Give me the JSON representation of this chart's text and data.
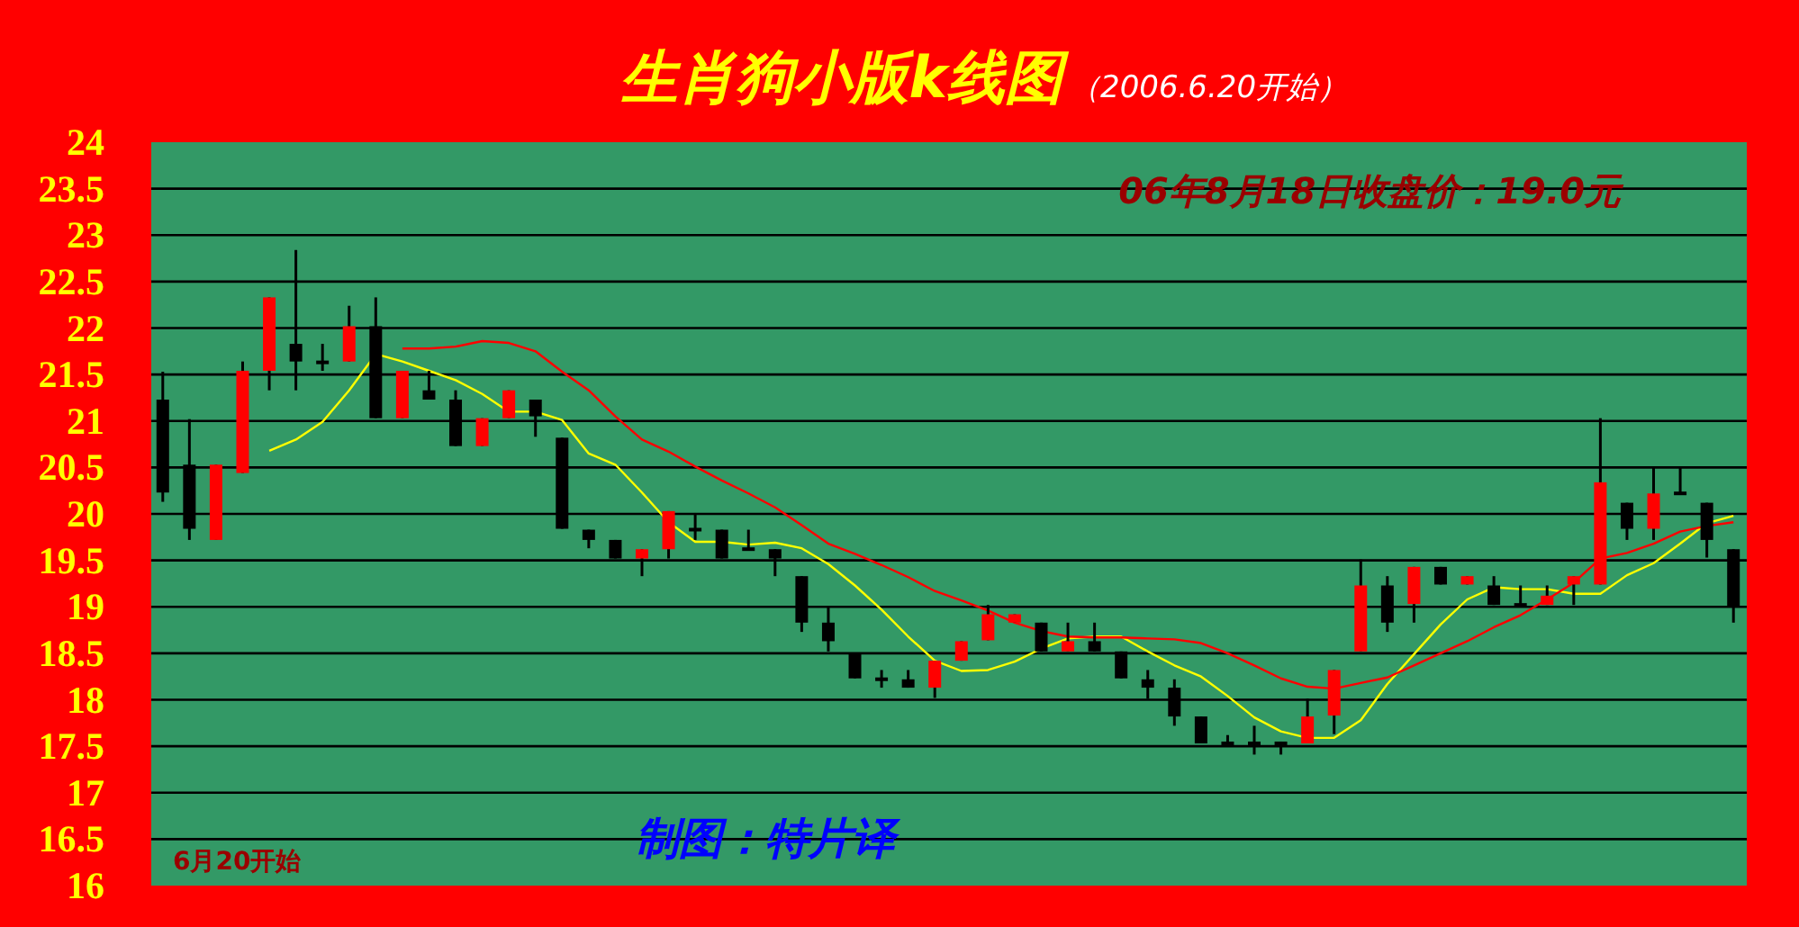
{
  "chart_data": {
    "type": "candlestick",
    "title": "生肖狗小版k线图",
    "subtitle": "（2006.6.20开始）",
    "annotations": [
      "06年8月18日收盘价：19.0元",
      "制图：特片译",
      "6月20开始"
    ],
    "categories": [
      null,
      null,
      null,
      null,
      null,
      null,
      null,
      null,
      null,
      null,
      null,
      null,
      null,
      null,
      null,
      null,
      null,
      null,
      null,
      null,
      null,
      null,
      null,
      null,
      null,
      null,
      null,
      null,
      null,
      null,
      null,
      null,
      null,
      null,
      null,
      null,
      null,
      null,
      null,
      null,
      null,
      null,
      null,
      null,
      null,
      null,
      null,
      null,
      null,
      null,
      null,
      null,
      null,
      null,
      null,
      null,
      null,
      null,
      null,
      null
    ],
    "ohlc": [
      [
        21.23,
        21.53,
        20.13,
        20.23
      ],
      [
        20.53,
        21.02,
        19.72,
        19.84
      ],
      [
        19.72,
        20.53,
        19.72,
        20.53
      ],
      [
        20.44,
        21.64,
        20.44,
        21.54
      ],
      [
        21.54,
        22.33,
        21.33,
        22.33
      ],
      [
        21.83,
        22.84,
        21.33,
        21.64
      ],
      [
        21.65,
        21.83,
        21.54,
        21.62
      ],
      [
        21.64,
        22.24,
        21.64,
        22.02
      ],
      [
        22.02,
        22.33,
        21.03,
        21.03
      ],
      [
        21.03,
        21.54,
        21.03,
        21.54
      ],
      [
        21.33,
        21.54,
        21.23,
        21.23
      ],
      [
        21.23,
        21.33,
        20.73,
        20.73
      ],
      [
        20.73,
        21.03,
        20.73,
        21.03
      ],
      [
        21.03,
        21.33,
        21.03,
        21.33
      ],
      [
        21.23,
        21.23,
        20.83,
        21.05
      ],
      [
        20.82,
        20.82,
        19.84,
        19.84
      ],
      [
        19.83,
        19.83,
        19.63,
        19.72
      ],
      [
        19.72,
        19.72,
        19.52,
        19.52
      ],
      [
        19.52,
        19.62,
        19.33,
        19.62
      ],
      [
        19.62,
        20.03,
        19.52,
        20.03
      ],
      [
        19.85,
        20.01,
        19.72,
        19.82
      ],
      [
        19.83,
        19.83,
        19.52,
        19.52
      ],
      [
        19.64,
        19.83,
        19.61,
        19.61
      ],
      [
        19.62,
        19.62,
        19.33,
        19.52
      ],
      [
        19.33,
        19.33,
        18.73,
        18.83
      ],
      [
        18.83,
        19.01,
        18.52,
        18.63
      ],
      [
        18.5,
        18.5,
        18.23,
        18.23
      ],
      [
        18.24,
        18.32,
        18.13,
        18.22
      ],
      [
        18.22,
        18.32,
        18.13,
        18.13
      ],
      [
        18.13,
        18.42,
        18.02,
        18.42
      ],
      [
        18.42,
        18.63,
        18.42,
        18.63
      ],
      [
        18.64,
        19.02,
        18.64,
        18.92
      ],
      [
        18.83,
        18.92,
        18.83,
        18.92
      ],
      [
        18.83,
        18.83,
        18.52,
        18.52
      ],
      [
        18.52,
        18.83,
        18.52,
        18.63
      ],
      [
        18.63,
        18.83,
        18.52,
        18.52
      ],
      [
        18.52,
        18.52,
        18.23,
        18.23
      ],
      [
        18.22,
        18.32,
        18.01,
        18.13
      ],
      [
        18.13,
        18.22,
        17.72,
        17.82
      ],
      [
        17.82,
        17.82,
        17.53,
        17.53
      ],
      [
        17.55,
        17.62,
        17.53,
        17.53
      ],
      [
        17.55,
        17.72,
        17.41,
        17.53
      ],
      [
        17.55,
        17.55,
        17.41,
        17.53
      ],
      [
        17.53,
        18.01,
        17.53,
        17.82
      ],
      [
        17.83,
        18.32,
        17.63,
        18.32
      ],
      [
        18.52,
        19.51,
        18.52,
        19.23
      ],
      [
        19.23,
        19.33,
        18.73,
        18.83
      ],
      [
        19.03,
        19.43,
        18.83,
        19.43
      ],
      [
        19.43,
        19.43,
        19.24,
        19.24
      ],
      [
        19.24,
        19.33,
        19.24,
        19.33
      ],
      [
        19.23,
        19.33,
        19.02,
        19.02
      ],
      [
        19.04,
        19.23,
        19.02,
        19.02
      ],
      [
        19.02,
        19.23,
        19.02,
        19.12
      ],
      [
        19.24,
        19.33,
        19.02,
        19.33
      ],
      [
        19.24,
        21.03,
        19.24,
        20.34
      ],
      [
        20.12,
        20.12,
        19.72,
        19.84
      ],
      [
        19.84,
        20.51,
        19.72,
        20.22
      ],
      [
        20.24,
        20.51,
        20.22,
        20.22
      ],
      [
        20.12,
        20.12,
        19.53,
        19.72
      ],
      [
        19.62,
        19.62,
        18.83,
        19.0
      ]
    ],
    "colors": [
      "#000000",
      "#000000",
      "#ff0000",
      "#ff0000",
      "#ff0000",
      "#000000",
      "#000000",
      "#ff0000",
      "#000000",
      "#ff0000",
      "#000000",
      "#000000",
      "#ff0000",
      "#ff0000",
      "#000000",
      "#000000",
      "#000000",
      "#000000",
      "#ff0000",
      "#ff0000",
      "#000000",
      "#000000",
      "#000000",
      "#000000",
      "#000000",
      "#000000",
      "#000000",
      "#000000",
      "#000000",
      "#ff0000",
      "#ff0000",
      "#ff0000",
      "#ff0000",
      "#000000",
      "#ff0000",
      "#000000",
      "#000000",
      "#000000",
      "#000000",
      "#000000",
      "#000000",
      "#000000",
      "#000000",
      "#ff0000",
      "#ff0000",
      "#ff0000",
      "#000000",
      "#ff0000",
      "#000000",
      "#ff0000",
      "#000000",
      "#000000",
      "#ff0000",
      "#ff0000",
      "#ff0000",
      "#000000",
      "#ff0000",
      "#000000",
      "#000000",
      "#000000"
    ],
    "series": [
      {
        "type": "line",
        "color": "#ffff00",
        "values": [
          null,
          null,
          null,
          null,
          20.68,
          20.8,
          20.99,
          21.33,
          21.72,
          21.64,
          21.54,
          21.44,
          21.29,
          21.1,
          21.1,
          21.01,
          20.65,
          20.53,
          20.23,
          19.91,
          19.7,
          19.7,
          19.67,
          19.69,
          19.63,
          19.46,
          19.23,
          18.97,
          18.68,
          18.42,
          18.31,
          18.32,
          18.41,
          18.55,
          18.66,
          18.68,
          18.68,
          18.52,
          18.37,
          18.25,
          18.04,
          17.81,
          17.66,
          17.59,
          17.59,
          17.78,
          18.17,
          18.49,
          18.81,
          19.08,
          19.21,
          19.19,
          19.19,
          19.14,
          19.14,
          19.34,
          19.47,
          19.68,
          19.9,
          19.98
        ]
      },
      {
        "type": "line",
        "color": "#ff0000",
        "values": [
          null,
          null,
          null,
          null,
          null,
          null,
          null,
          null,
          null,
          21.78,
          21.78,
          21.8,
          21.86,
          21.84,
          21.75,
          21.53,
          21.33,
          21.05,
          20.8,
          20.67,
          20.51,
          20.36,
          20.22,
          20.07,
          19.88,
          19.68,
          19.57,
          19.45,
          19.32,
          19.17,
          19.07,
          18.96,
          18.83,
          18.74,
          18.68,
          18.67,
          18.67,
          18.66,
          18.65,
          18.61,
          18.5,
          18.37,
          18.23,
          18.14,
          18.12,
          18.18,
          18.24,
          18.37,
          18.5,
          18.63,
          18.78,
          18.91,
          19.08,
          19.26,
          19.52,
          19.58,
          19.68,
          19.81,
          19.87,
          19.91
        ]
      }
    ],
    "ylim": [
      16,
      24
    ],
    "yticks": [
      16,
      16.5,
      17,
      17.5,
      18,
      18.5,
      19,
      19.5,
      20,
      20.5,
      21,
      21.5,
      22,
      22.5,
      23,
      23.5,
      24
    ],
    "grid": "y"
  }
}
